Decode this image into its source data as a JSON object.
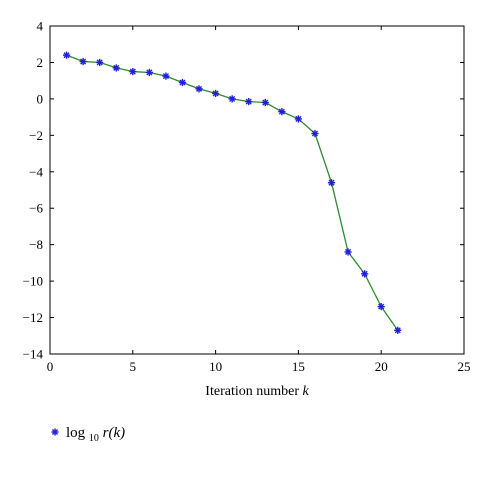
{
  "chart_data": {
    "type": "line",
    "title": "",
    "xlabel": "Iteration number",
    "xlabel_var": "k",
    "ylabel": "",
    "xlim": [
      0,
      25
    ],
    "ylim": [
      -14,
      4
    ],
    "xticks": [
      0,
      5,
      10,
      15,
      20,
      25
    ],
    "yticks": [
      4,
      2,
      0,
      -2,
      -4,
      -6,
      -8,
      -10,
      -12,
      -14
    ],
    "grid": false,
    "legend_position": "bottom-left",
    "line_color": "#2e8b2e",
    "marker_color": "#1f1fd6",
    "marker": "star",
    "series": [
      {
        "name": "log10 r(k)",
        "legend": {
          "prefix": "log",
          "subscript": "10",
          "suffix": " r(k)"
        },
        "x": [
          1,
          2,
          3,
          4,
          5,
          6,
          7,
          8,
          9,
          10,
          11,
          12,
          13,
          14,
          15,
          16,
          17,
          18,
          19,
          20,
          21
        ],
        "y": [
          2.4,
          2.05,
          2.0,
          1.7,
          1.5,
          1.45,
          1.25,
          0.9,
          0.55,
          0.3,
          0.0,
          -0.15,
          -0.2,
          -0.7,
          -1.1,
          -1.9,
          -4.6,
          -8.4,
          -9.6,
          -11.4,
          -12.7
        ]
      }
    ]
  }
}
